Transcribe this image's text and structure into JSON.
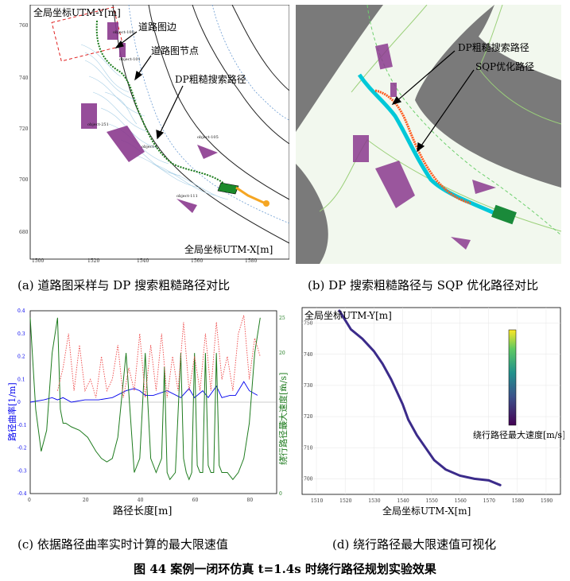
{
  "panels": {
    "a": {
      "ylabel": "全局坐标UTM-Y[m]",
      "xlabel": "全局坐标UTM-X[m]",
      "xticks": [
        "1500",
        "1520",
        "1540",
        "1560",
        "1580"
      ],
      "yticks": [
        "760",
        "740",
        "720",
        "700",
        "680"
      ],
      "ann_road_edge": "道路图边",
      "ann_road_node": "道路图节点",
      "ann_dp_path": "DP粗糙搜索路径",
      "objects": [
        "object-100",
        "object-101",
        "object-251",
        "object-1",
        "object-105",
        "object-111"
      ],
      "caption": "(a) 道路图采样与 DP 搜索粗糙路径对比"
    },
    "b": {
      "ann_dp": "DP粗糙搜索路径",
      "ann_sqp": "SQP优化路径",
      "caption": "(b) DP 搜索粗糙路径与 SQP 优化路径对比"
    },
    "c": {
      "xlabel": "路径长度[m]",
      "ylabel_left": "路径曲率[1/m]",
      "ylabel_right": "绕行路径最大速度[m/s]",
      "caption": "(c) 依据路径曲率实时计算的最大限速值"
    },
    "d": {
      "ylabel": "全局坐标UTM-Y[m]",
      "xlabel": "全局坐标UTM-X[m]",
      "colorbar_label": "绕行路径最大速度[m/s]",
      "caption": "(d) 绕行路径最大限速值可视化"
    }
  },
  "figure_caption": "图 44 案例一闭环仿真 t=1.4s 时绕行路径规划实验效果",
  "chart_data": [
    {
      "type": "line",
      "title": "",
      "xlabel": "路径长度[m]",
      "ylabel": "路径曲率[1/m]",
      "x_ticks": [
        "0",
        "20",
        "40",
        "60",
        "80"
      ],
      "y_ticks_left": [
        "0.4",
        "0.3",
        "0.2",
        "0.1",
        "0",
        "-0.1",
        "-0.2",
        "-0.3",
        "-0.4"
      ],
      "y_ticks_right": [
        "25",
        "20",
        "15",
        "10",
        "5",
        "0"
      ],
      "xlim": [
        0,
        90
      ],
      "ylim": [
        -0.4,
        0.4
      ],
      "series": [
        {
          "name": "路径曲率[1/m]",
          "color": "#0000ee",
          "x": [
            0,
            5,
            8,
            10,
            12,
            15,
            20,
            25,
            30,
            35,
            38,
            40,
            42,
            45,
            50,
            55,
            58,
            60,
            63,
            65,
            68,
            70,
            73,
            75,
            78,
            80,
            83
          ],
          "values": [
            0,
            0.01,
            0.02,
            0.01,
            0.02,
            0,
            0.01,
            0.01,
            0.02,
            0.05,
            0.06,
            0.05,
            0.03,
            0.03,
            0.05,
            0.02,
            0.06,
            0.02,
            0.05,
            0.02,
            0.07,
            0.02,
            0.03,
            0.03,
            0.09,
            0.05,
            0.03
          ]
        },
        {
          "name": "绕行路径最大速度[m/s]",
          "color": "#1e7b1e",
          "x": [
            0,
            2,
            4,
            6,
            8,
            10,
            11,
            12,
            13,
            15,
            18,
            21,
            24,
            26,
            28,
            30,
            32,
            35,
            38,
            40,
            42,
            44,
            46,
            48,
            49,
            50,
            51,
            53,
            55,
            56,
            57,
            58,
            59,
            60,
            61,
            62,
            63,
            64,
            65,
            66,
            67,
            68,
            69,
            70,
            72,
            74,
            76,
            78,
            80,
            82,
            84
          ],
          "values": [
            25,
            12,
            6,
            9,
            20,
            25,
            12,
            10,
            10,
            9.5,
            9,
            8,
            6,
            5,
            4.5,
            5,
            8,
            20,
            3,
            5,
            20,
            5,
            3,
            5,
            18,
            3,
            2,
            3,
            20,
            5,
            3,
            2,
            3,
            20,
            4,
            3,
            3,
            20,
            4,
            3,
            3,
            20,
            4,
            3,
            3,
            2,
            3,
            5,
            10,
            20,
            25
          ]
        },
        {
          "name": "",
          "color": "#ee4444",
          "style": "dotted",
          "x": [
            10,
            12,
            14,
            16,
            18,
            20,
            22,
            24,
            26,
            28,
            30,
            32,
            34,
            36,
            38,
            40,
            42,
            44,
            46,
            48,
            50,
            52,
            54,
            56,
            58,
            60,
            62,
            64,
            66,
            68,
            70,
            72,
            74,
            76,
            78,
            80,
            82,
            84
          ],
          "values": [
            0.05,
            0.15,
            0.3,
            0.05,
            0.25,
            0.05,
            0.1,
            0.02,
            0.2,
            0.05,
            0.1,
            0.25,
            0.02,
            0.15,
            0.05,
            0.3,
            0.02,
            0.25,
            0.05,
            0.3,
            0.02,
            0.2,
            0.05,
            0.35,
            0.05,
            0.2,
            0.05,
            0.3,
            0.05,
            0.35,
            0.1,
            0.2,
            0.05,
            0.3,
            0.38,
            0.1,
            0.28,
            0.2
          ]
        }
      ]
    },
    {
      "type": "line",
      "title": "",
      "xlabel": "全局坐标UTM-X[m]",
      "ylabel": "全局坐标UTM-Y[m]",
      "x_ticks": [
        "1510",
        "1520",
        "1530",
        "1540",
        "1550",
        "1560",
        "1570",
        "1580",
        "1590"
      ],
      "y_ticks": [
        "750",
        "740",
        "730",
        "720",
        "710",
        "700"
      ],
      "xlim": [
        1505,
        1595
      ],
      "ylim": [
        695,
        755
      ],
      "series": [
        {
          "name": "绕行路径",
          "color": "#3b2b8a",
          "x": [
            1518,
            1522,
            1526,
            1530,
            1533,
            1536,
            1538,
            1540,
            1542,
            1545,
            1548,
            1551,
            1555,
            1560,
            1565,
            1570,
            1574
          ],
          "values": [
            754,
            748,
            745,
            741,
            737,
            732,
            728,
            724,
            719,
            714,
            710,
            706,
            703,
            701,
            700,
            699.5,
            698
          ]
        }
      ]
    }
  ]
}
